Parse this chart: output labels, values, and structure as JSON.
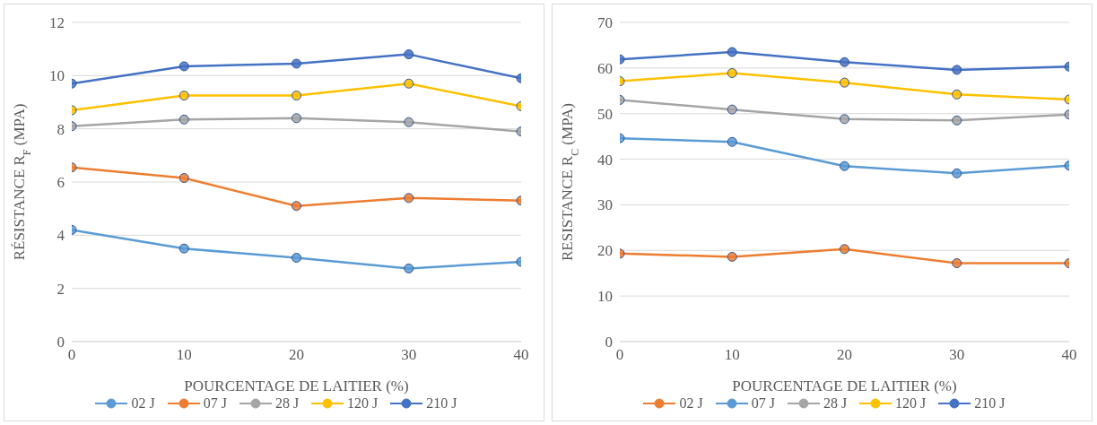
{
  "chart_data": [
    {
      "type": "line",
      "ylabel": "RÉSISTANCE R$_{F}$ (MPA)",
      "xlabel": "POURCENTAGE DE LAITIER (%)",
      "x": [
        0,
        10,
        20,
        30,
        40
      ],
      "xlim": [
        0,
        40
      ],
      "xticks": [
        0,
        10,
        20,
        30,
        40
      ],
      "ylim": [
        0,
        12
      ],
      "yticks": [
        0,
        2,
        4,
        6,
        8,
        10,
        12
      ],
      "grid": "y",
      "legend": "bottom",
      "marker": "circle",
      "line_style": "solid",
      "series": [
        {
          "name": "02 J",
          "color": "#5b9bd5",
          "values": [
            4.2,
            3.5,
            3.15,
            2.75,
            3.0
          ]
        },
        {
          "name": "07 J",
          "color": "#ed7d31",
          "values": [
            6.55,
            6.15,
            5.1,
            5.4,
            5.3
          ]
        },
        {
          "name": "28 J",
          "color": "#a5a5a5",
          "values": [
            8.1,
            8.35,
            8.4,
            8.25,
            7.9
          ]
        },
        {
          "name": "120 J",
          "color": "#ffc000",
          "values": [
            8.7,
            9.25,
            9.25,
            9.7,
            8.85
          ]
        },
        {
          "name": "210 J",
          "color": "#4472c4",
          "values": [
            9.7,
            10.35,
            10.45,
            10.8,
            9.9
          ]
        }
      ]
    },
    {
      "type": "line",
      "ylabel": "RESISTANCE R$_{C}$ (MPA)",
      "xlabel": "POURCENTAGE DE LAITIER (%)",
      "x": [
        0,
        10,
        20,
        30,
        40
      ],
      "xlim": [
        0,
        40
      ],
      "xticks": [
        0,
        10,
        20,
        30,
        40
      ],
      "ylim": [
        0,
        70
      ],
      "yticks": [
        0,
        10,
        20,
        30,
        40,
        50,
        60,
        70
      ],
      "grid": "y",
      "legend": "bottom",
      "marker": "circle",
      "line_style": "solid",
      "series": [
        {
          "name": "02 J",
          "color": "#ed7d31",
          "values": [
            19.3,
            18.6,
            20.3,
            17.2,
            17.2
          ]
        },
        {
          "name": "07 J",
          "color": "#5b9bd5",
          "values": [
            44.6,
            43.8,
            38.5,
            36.9,
            38.6
          ]
        },
        {
          "name": "28 J",
          "color": "#a5a5a5",
          "values": [
            53,
            50.9,
            48.8,
            48.5,
            49.8
          ]
        },
        {
          "name": "120 J",
          "color": "#ffc000",
          "values": [
            57.1,
            58.9,
            56.8,
            54.2,
            53.1
          ]
        },
        {
          "name": "210 J",
          "color": "#4472c4",
          "values": [
            61.9,
            63.5,
            61.3,
            59.6,
            60.3
          ]
        }
      ]
    }
  ]
}
